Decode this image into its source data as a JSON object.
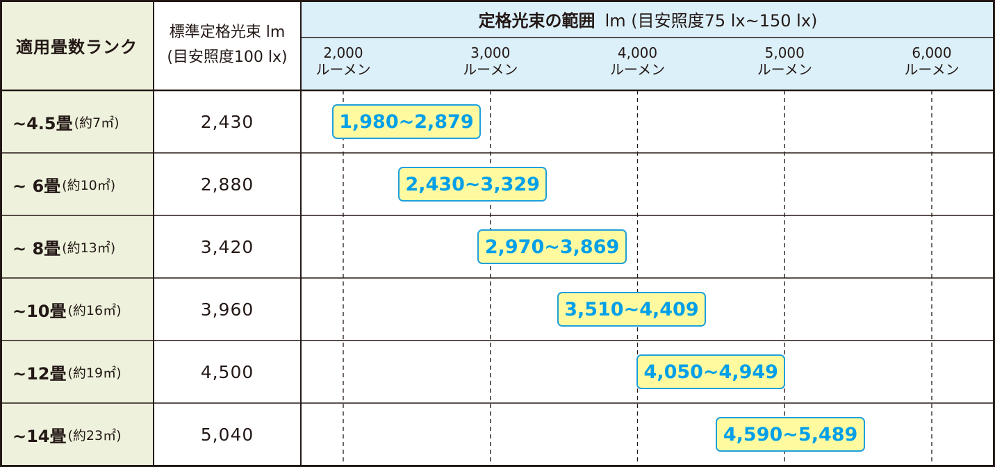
{
  "colors": {
    "rank_column_bg": "#eef2dc",
    "range_header_bg": "#dcf0fa",
    "range_label_bg": "#fffaa0",
    "range_label_text": "#009fe8",
    "range_label_border": "#1ea0dc",
    "border": "#231815",
    "grid": "#231815"
  },
  "header": {
    "rank": "適用畳数ランク",
    "standard_line1": "標準定格光束 lm",
    "standard_line2": "(目安照度100 lx)",
    "range_title": "定格光束の範囲",
    "range_unit": "lm (目安照度75 lx~150 lx)"
  },
  "ticks": [
    {
      "value": 2000,
      "label_num": "2,000",
      "label_unit": "ルーメン"
    },
    {
      "value": 3000,
      "label_num": "3,000",
      "label_unit": "ルーメン"
    },
    {
      "value": 4000,
      "label_num": "4,000",
      "label_unit": "ルーメン"
    },
    {
      "value": 5000,
      "label_num": "5,000",
      "label_unit": "ルーメン"
    },
    {
      "value": 6000,
      "label_num": "6,000",
      "label_unit": "ルーメン"
    }
  ],
  "rows": [
    {
      "rank_main": "~4.5畳",
      "rank_area": "(約7㎡)",
      "standard": "2,430",
      "range_label": "1,980~2,879"
    },
    {
      "rank_main": "~ 6畳",
      "rank_area": "(約10㎡)",
      "standard": "2,880",
      "range_label": "2,430~3,329"
    },
    {
      "rank_main": "~ 8畳",
      "rank_area": "(約13㎡)",
      "standard": "3,420",
      "range_label": "2,970~3,869"
    },
    {
      "rank_main": "~10畳",
      "rank_area": "(約16㎡)",
      "standard": "3,960",
      "range_label": "3,510~4,409"
    },
    {
      "rank_main": "~12畳",
      "rank_area": "(約19㎡)",
      "standard": "4,500",
      "range_label": "4,050~4,949"
    },
    {
      "rank_main": "~14畳",
      "rank_area": "(約23㎡)",
      "standard": "5,040",
      "range_label": "4,590~5,489"
    }
  ],
  "chart_data": {
    "type": "table",
    "columns": [
      "適用畳数ランク",
      "標準定格光束 lm (目安照度100 lx)",
      "定格光束の範囲 lm (目安照度75 lx~150 lx)"
    ],
    "x_axis": {
      "min": 1800,
      "max": 6200,
      "ticks": [
        2000,
        3000,
        4000,
        5000,
        6000
      ],
      "gridlines": "dashed"
    },
    "rows": [
      {
        "rank": "~4.5畳",
        "standard": 2430,
        "range": [
          1980,
          2879
        ]
      },
      {
        "rank": "~6畳",
        "standard": 2880,
        "range": [
          2430,
          3329
        ]
      },
      {
        "rank": "~8畳",
        "standard": 3420,
        "range": [
          2970,
          3869
        ]
      },
      {
        "rank": "~10畳",
        "standard": 3960,
        "range": [
          3510,
          4409
        ]
      },
      {
        "rank": "~12畳",
        "standard": 4500,
        "range": [
          4050,
          4949
        ]
      },
      {
        "rank": "~14畳",
        "standard": 5040,
        "range": [
          4590,
          5489
        ]
      }
    ]
  }
}
